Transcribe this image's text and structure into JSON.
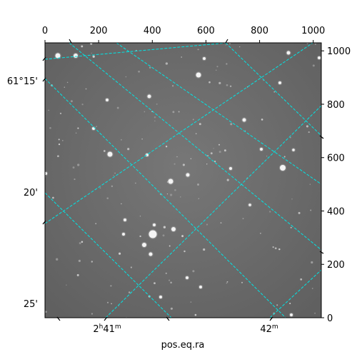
{
  "figure": {
    "xlabel": "pos.eq.ra",
    "top_ticks": [
      "0",
      "200",
      "400",
      "600",
      "800",
      "1000"
    ],
    "right_ticks": [
      "0",
      "200",
      "400",
      "600",
      "800",
      "1000"
    ],
    "left_wcs_ticks": [
      "61°15'",
      "20'",
      "25'"
    ],
    "bottom_wcs_ticks": [
      {
        "main": "2",
        "sup1": "h",
        "mid": "41",
        "sup2": "m"
      },
      {
        "main": "42",
        "sup1": "",
        "mid": "",
        "sup2": "m"
      }
    ],
    "grid_color": "#00e5e5",
    "image_background": "#6b6b6b"
  }
}
